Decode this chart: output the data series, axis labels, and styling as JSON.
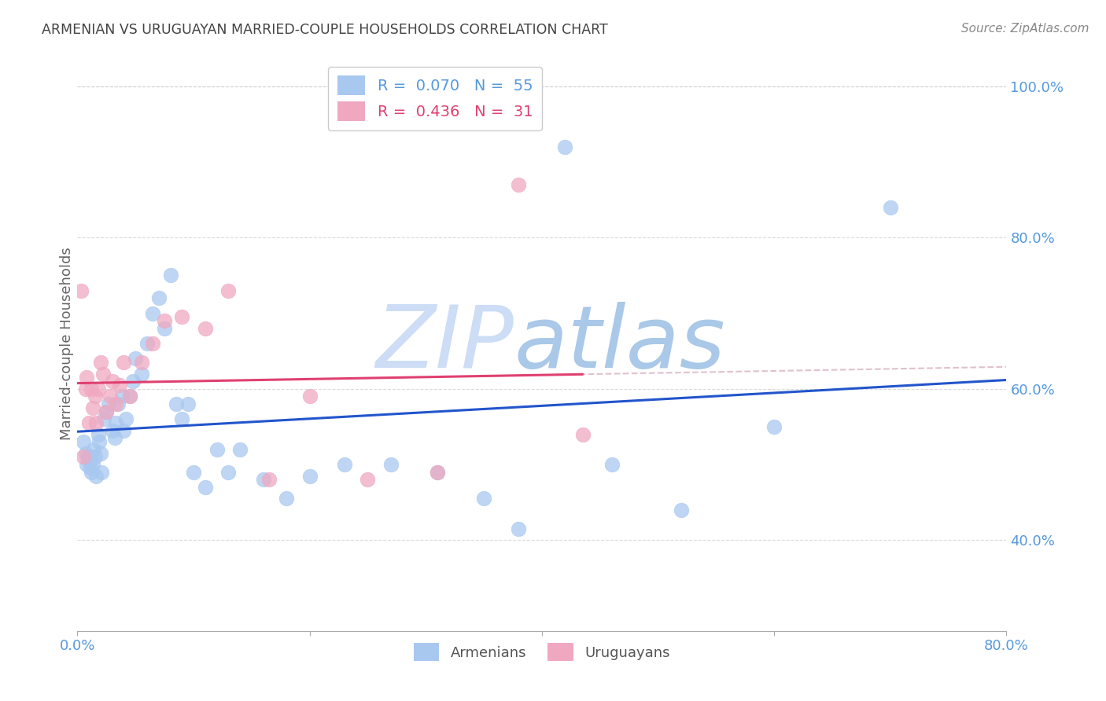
{
  "title": "ARMENIAN VS URUGUAYAN MARRIED-COUPLE HOUSEHOLDS CORRELATION CHART",
  "source": "Source: ZipAtlas.com",
  "ylabel": "Married-couple Households",
  "xlim": [
    0.0,
    0.8
  ],
  "ylim": [
    0.28,
    1.04
  ],
  "yticks": [
    0.4,
    0.6,
    0.8,
    1.0
  ],
  "yticklabels": [
    "40.0%",
    "60.0%",
    "80.0%",
    "100.0%"
  ],
  "armenian_color": "#a8c8f0",
  "uruguayan_color": "#f0a8c0",
  "armenian_trendline_color": "#2255cc",
  "uruguayan_trendline_color": "#e04070",
  "diagonal_color": "#ddbbc8",
  "background_color": "#ffffff",
  "grid_color": "#cccccc",
  "title_color": "#444444",
  "axis_color": "#5599dd",
  "watermark_zip_color": "#ccddf5",
  "watermark_atlas_color": "#99bbdd",
  "armenians_x": [
    0.005,
    0.007,
    0.008,
    0.009,
    0.01,
    0.011,
    0.012,
    0.013,
    0.014,
    0.015,
    0.016,
    0.018,
    0.019,
    0.02,
    0.021,
    0.023,
    0.025,
    0.027,
    0.03,
    0.032,
    0.033,
    0.035,
    0.038,
    0.04,
    0.042,
    0.045,
    0.048,
    0.05,
    0.055,
    0.06,
    0.065,
    0.07,
    0.075,
    0.08,
    0.085,
    0.09,
    0.095,
    0.1,
    0.11,
    0.12,
    0.13,
    0.14,
    0.16,
    0.18,
    0.2,
    0.23,
    0.27,
    0.31,
    0.35,
    0.38,
    0.42,
    0.46,
    0.52,
    0.6,
    0.7
  ],
  "armenians_y": [
    0.53,
    0.515,
    0.5,
    0.51,
    0.505,
    0.495,
    0.49,
    0.5,
    0.52,
    0.51,
    0.485,
    0.54,
    0.53,
    0.515,
    0.49,
    0.56,
    0.57,
    0.58,
    0.545,
    0.535,
    0.555,
    0.58,
    0.59,
    0.545,
    0.56,
    0.59,
    0.61,
    0.64,
    0.62,
    0.66,
    0.7,
    0.72,
    0.68,
    0.75,
    0.58,
    0.56,
    0.58,
    0.49,
    0.47,
    0.52,
    0.49,
    0.52,
    0.48,
    0.455,
    0.485,
    0.5,
    0.5,
    0.49,
    0.455,
    0.415,
    0.92,
    0.5,
    0.44,
    0.55,
    0.84
  ],
  "uruguayans_x": [
    0.003,
    0.005,
    0.007,
    0.008,
    0.01,
    0.012,
    0.013,
    0.015,
    0.016,
    0.018,
    0.02,
    0.022,
    0.025,
    0.028,
    0.03,
    0.033,
    0.036,
    0.04,
    0.045,
    0.055,
    0.065,
    0.075,
    0.09,
    0.11,
    0.13,
    0.165,
    0.2,
    0.25,
    0.31,
    0.38,
    0.435
  ],
  "uruguayans_y": [
    0.73,
    0.51,
    0.6,
    0.615,
    0.555,
    0.6,
    0.575,
    0.59,
    0.555,
    0.6,
    0.635,
    0.62,
    0.57,
    0.59,
    0.61,
    0.58,
    0.605,
    0.635,
    0.59,
    0.635,
    0.66,
    0.69,
    0.695,
    0.68,
    0.73,
    0.48,
    0.59,
    0.48,
    0.49,
    0.87,
    0.54
  ],
  "legend1_r": "0.070",
  "legend1_n": "55",
  "legend2_r": "0.436",
  "legend2_n": "31"
}
